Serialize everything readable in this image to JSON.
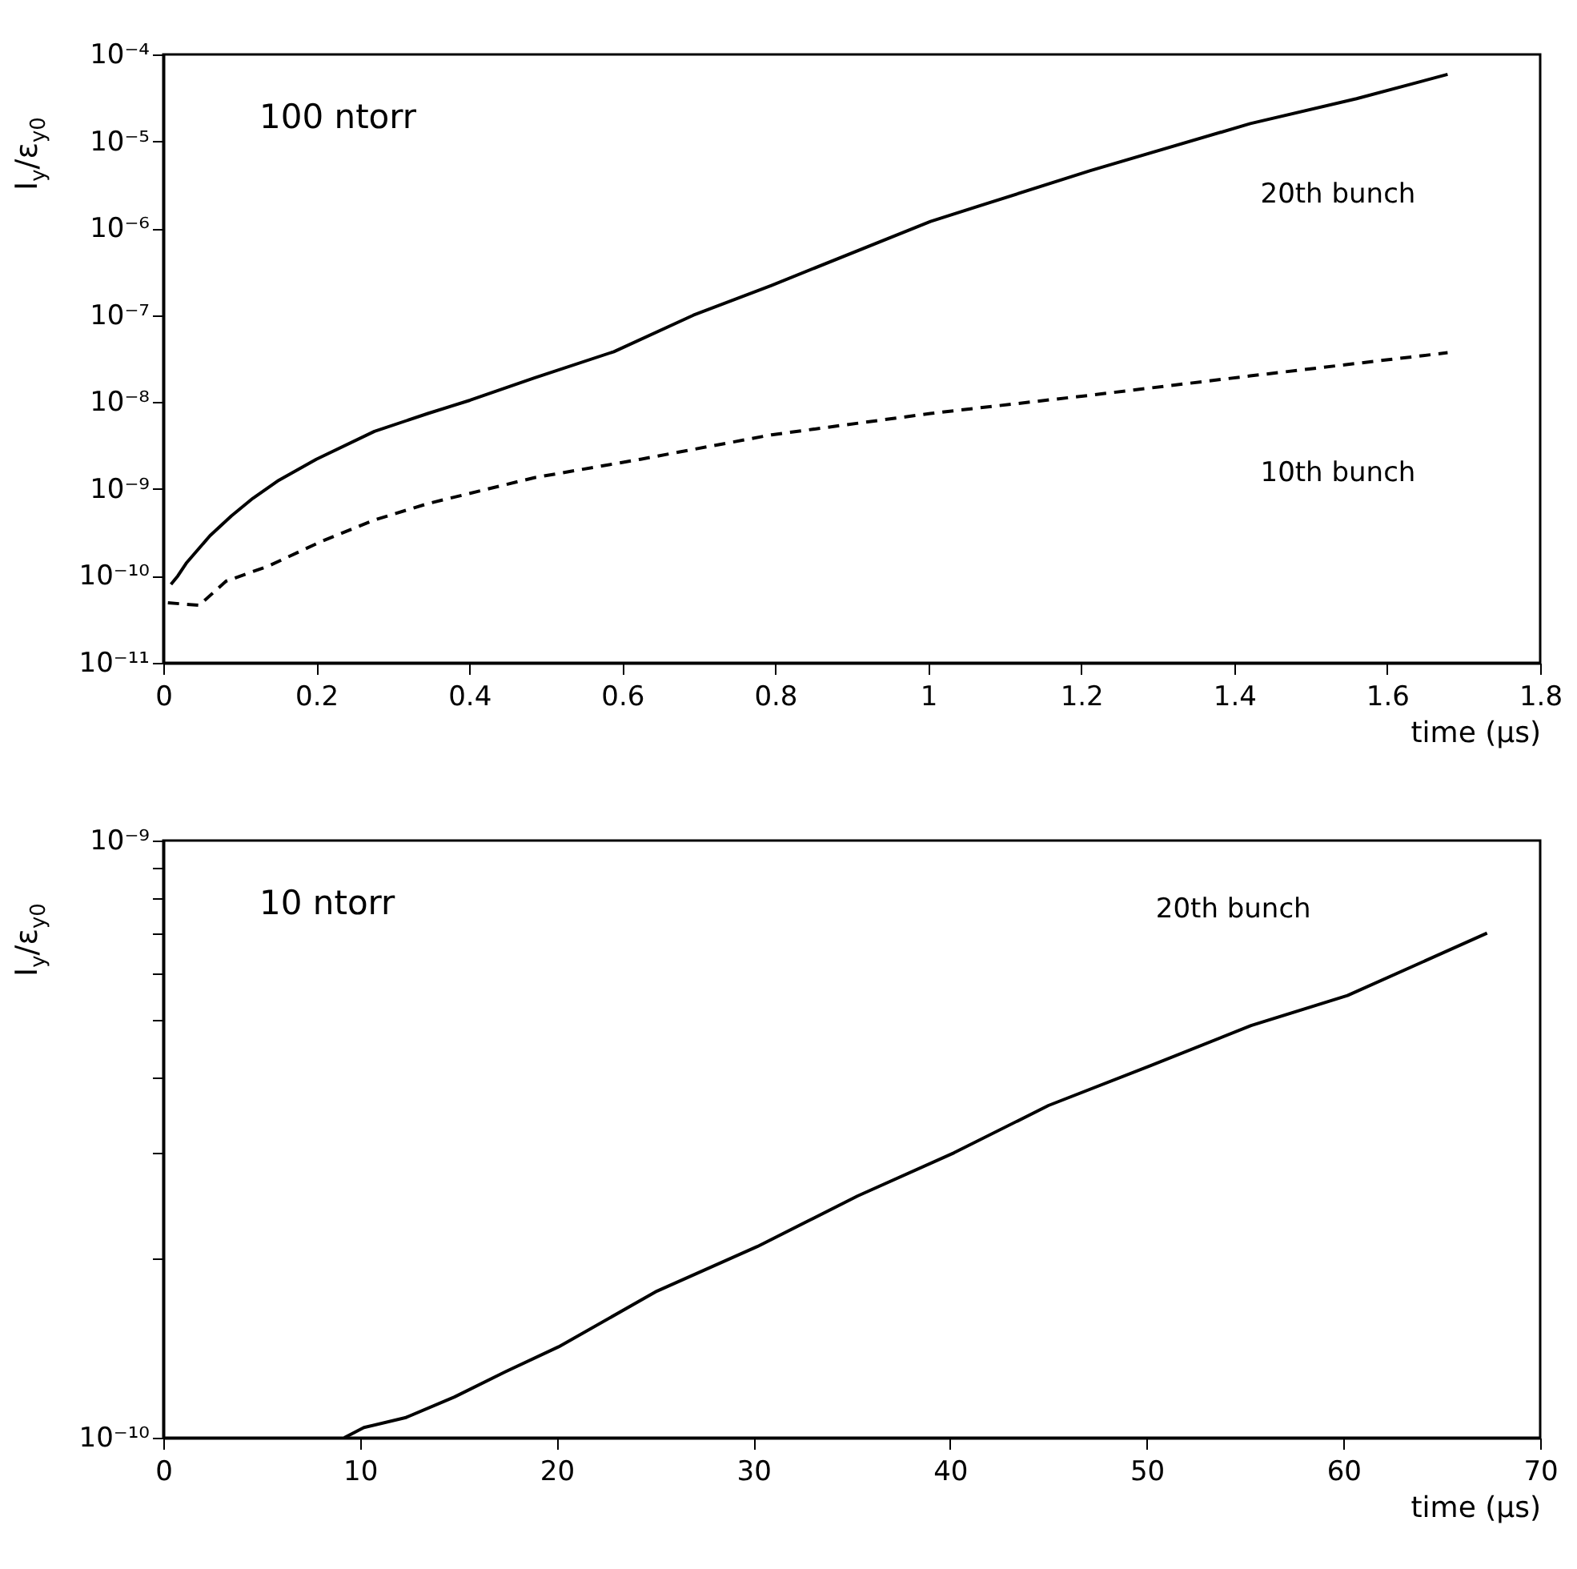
{
  "chart_data": [
    {
      "type": "line",
      "ylabel": "I$_{y}$/ε$_{y0}$",
      "xlabel": "time (μs)",
      "annotations": [
        "100 ntorr"
      ],
      "log": "y",
      "grid": false,
      "xlim": [
        0,
        1.8
      ],
      "xticks": [
        0,
        0.2,
        0.4,
        0.6,
        0.8,
        1,
        1.2,
        1.4,
        1.6,
        1.8
      ],
      "ylim": [
        1e-11,
        0.0001
      ],
      "yticks": [
        {
          "value": 1e-11,
          "label": "10⁻¹¹"
        },
        {
          "value": 1e-10,
          "label": "10⁻¹⁰"
        },
        {
          "value": 1e-09,
          "label": "10⁻⁹"
        },
        {
          "value": 1e-08,
          "label": "10⁻⁸"
        },
        {
          "value": 1e-07,
          "label": "10⁻⁷"
        },
        {
          "value": 1e-06,
          "label": "10⁻⁶"
        },
        {
          "value": 1e-05,
          "label": "10⁻⁵"
        },
        {
          "value": 0.0001,
          "label": "10⁻⁴"
        }
      ],
      "series": [
        {
          "name": "20th bunch",
          "color": "#000000",
          "line_style": "solid",
          "x": [
            0.01,
            0.019,
            0.03,
            0.061,
            0.089,
            0.117,
            0.151,
            0.2,
            0.276,
            0.346,
            0.401,
            0.485,
            0.589,
            0.693,
            0.795,
            1.003,
            1.212,
            1.421,
            1.56,
            1.679
          ],
          "values": [
            8e-11,
            1e-10,
            1.4e-10,
            2.9e-10,
            4.9e-10,
            7.8e-10,
            1.26e-09,
            2.2e-09,
            4.6e-09,
            7.4e-09,
            1.05e-08,
            1.9e-08,
            3.8e-08,
            1e-07,
            2.2e-07,
            1.2e-06,
            4.6e-06,
            1.6e-05,
            3.1e-05,
            5.9e-05
          ]
        },
        {
          "name": "10th bunch",
          "color": "#000000",
          "line_style": "dashed",
          "x": [
            0.006,
            0.047,
            0.082,
            0.1375,
            0.207,
            0.276,
            0.346,
            0.485,
            0.624,
            0.795,
            1.003,
            1.212,
            1.421,
            1.679
          ],
          "values": [
            4.9e-11,
            4.6e-11,
            8.7e-11,
            1.3e-10,
            2.5e-10,
            4.4e-10,
            6.8e-10,
            1.35e-09,
            2.2e-09,
            4.2e-09,
            7.4e-09,
            1.2e-08,
            2e-08,
            3.7e-08
          ]
        }
      ]
    },
    {
      "type": "line",
      "ylabel": "I$_{y}$/ε$_{y0}$",
      "xlabel": "time (μs)",
      "annotations": [
        "10 ntorr"
      ],
      "log": "y",
      "grid": false,
      "xlim": [
        0,
        70
      ],
      "xticks": [
        0,
        10,
        20,
        30,
        40,
        50,
        60,
        70
      ],
      "ylim": [
        1e-10,
        1e-09
      ],
      "yticks": [
        {
          "value": 1e-10,
          "label": "10⁻¹⁰"
        },
        {
          "value": 2e-10,
          "label": null
        },
        {
          "value": 3e-10,
          "label": null
        },
        {
          "value": 4e-10,
          "label": null
        },
        {
          "value": 5e-10,
          "label": null
        },
        {
          "value": 6e-10,
          "label": null
        },
        {
          "value": 7e-10,
          "label": null
        },
        {
          "value": 8e-10,
          "label": null
        },
        {
          "value": 9e-10,
          "label": null
        },
        {
          "value": 1e-09,
          "label": "10⁻⁹"
        }
      ],
      "series": [
        {
          "name": "20th bunch",
          "color": "#000000",
          "line_style": "solid",
          "x": [
            9.2,
            10.2,
            12.3,
            14.8,
            17.4,
            20.1,
            25.1,
            30.2,
            35.3,
            40.2,
            45.0,
            50.2,
            55.3,
            60.2,
            67.3
          ],
          "values": [
            1e-10,
            1.04e-10,
            1.08e-10,
            1.17e-10,
            1.29e-10,
            1.42e-10,
            1.76e-10,
            2.09e-10,
            2.54e-10,
            3e-10,
            3.6e-10,
            4.2e-10,
            4.9e-10,
            5.5e-10,
            7e-10
          ]
        }
      ]
    }
  ]
}
